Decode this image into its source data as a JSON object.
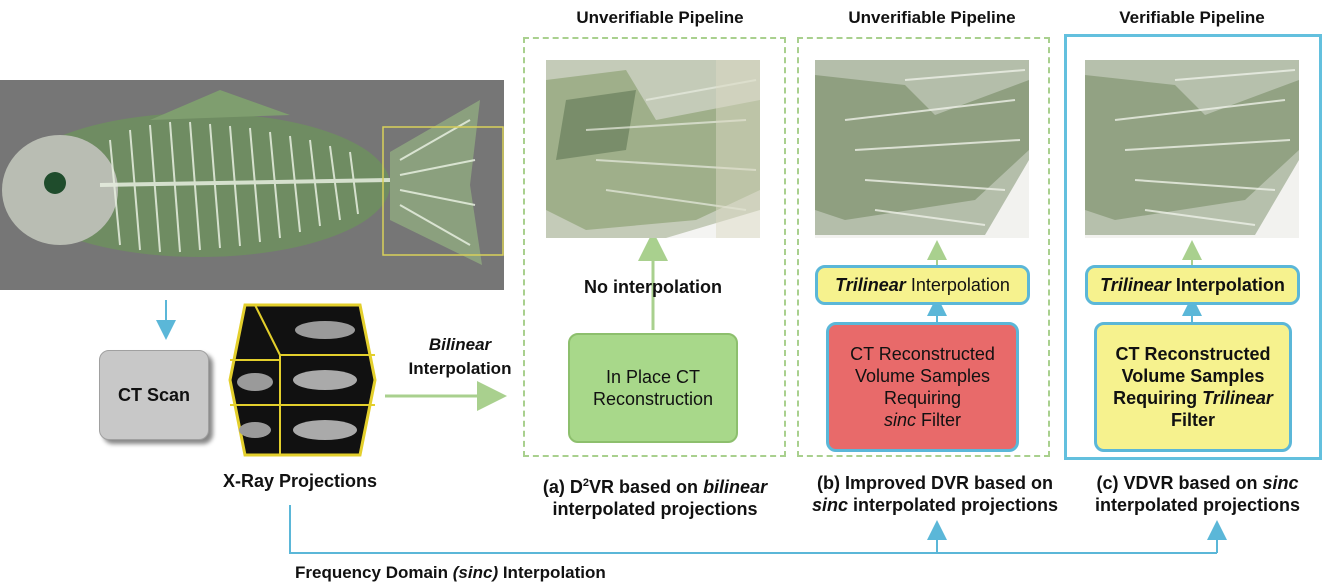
{
  "titles": {
    "a": "Unverifiable Pipeline",
    "b": "Unverifiable Pipeline",
    "c": "Verifiable Pipeline"
  },
  "left": {
    "ct_scan": "CT Scan",
    "xray_caption": "X-Ray Projections",
    "bilinear_word": "Bilinear",
    "interpolation_word": "Interpolation"
  },
  "panel_a": {
    "no_interp": "No interpolation",
    "box_line1": "In Place CT",
    "box_line2": "Reconstruction",
    "cap_line1_pre": "(a) D",
    "cap_sup": "2",
    "cap_line1_mid": "VR based on ",
    "cap_line1_em": "bilinear",
    "cap_line2": "interpolated projections"
  },
  "panel_b": {
    "interp_em": "Trilinear",
    "interp_rest": " Interpolation",
    "box_line1": "CT Reconstructed",
    "box_line2": "Volume  Samples",
    "box_line3": "Requiring",
    "box_line4_em": "sinc",
    "box_line4_rest": " Filter",
    "cap_line1": "(b) Improved DVR based on",
    "cap_line2_em": "sinc",
    "cap_line2_rest": " interpolated projections"
  },
  "panel_c": {
    "interp_em": "Trilinear",
    "interp_rest": " Interpolation",
    "box_line1": "CT Reconstructed",
    "box_line2": "Volume Samples",
    "box_line3_pre": "Requiring ",
    "box_line3_em": "Trilinear",
    "box_line4": "Filter",
    "cap_line1_pre": "(c) VDVR based on ",
    "cap_line1_em": "sinc",
    "cap_line2": "interpolated projections"
  },
  "bottom": {
    "label_pre": "Frequency Domain ",
    "label_em": "(sinc)",
    "label_post": " Interpolation"
  },
  "colors": {
    "arrow_blue": "#5bb7d8",
    "arrow_green": "#a9d08e",
    "box_green": "#a8d88a",
    "box_red": "#e86a6a",
    "box_yellow": "#f6f28e",
    "ct_gray": "#c8c8c8"
  }
}
